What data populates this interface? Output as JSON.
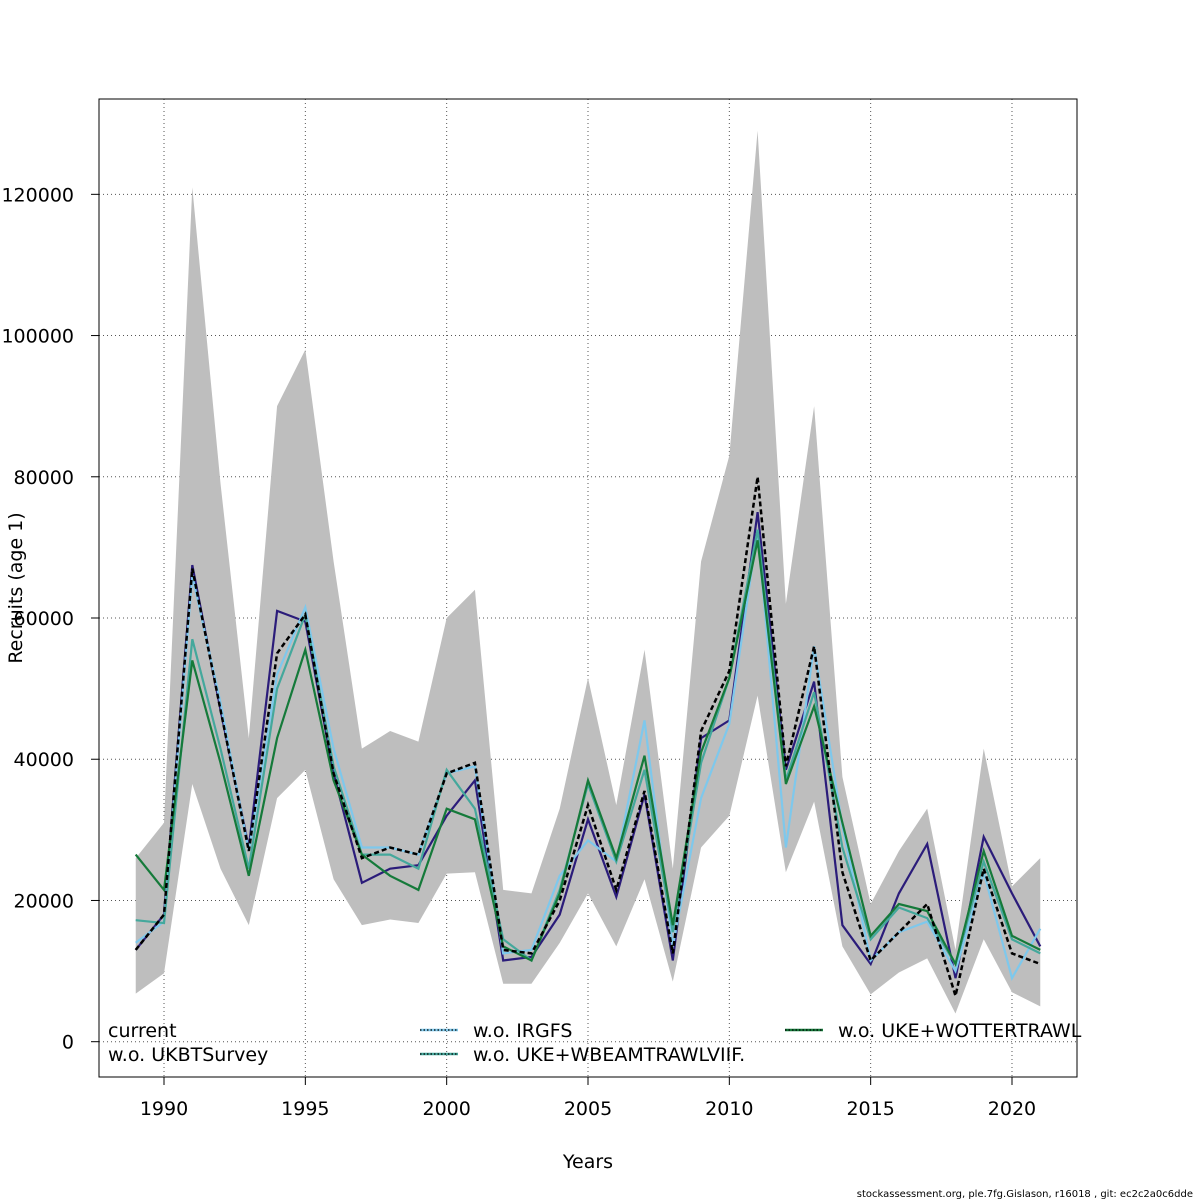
{
  "chart_data": {
    "type": "line",
    "title": "",
    "xlabel": "Years",
    "ylabel": "Recruits (age 1)",
    "xlim": [
      1987.7,
      2022.3
    ],
    "ylim": [
      -5000,
      133500
    ],
    "grid": true,
    "x_ticks": [
      1990,
      1995,
      2000,
      2005,
      2010,
      2015,
      2020
    ],
    "y_ticks": [
      0,
      20000,
      40000,
      60000,
      80000,
      100000,
      120000
    ],
    "x_tick_labels": [
      "1990",
      "1995",
      "2000",
      "2005",
      "2010",
      "2015",
      "2020"
    ],
    "y_tick_labels": [
      "0",
      "20000",
      "40000",
      "60000",
      "80000",
      "100000",
      "120000"
    ],
    "x": [
      1989,
      1990,
      1991,
      1992,
      1993,
      1994,
      1995,
      1996,
      1997,
      1998,
      1999,
      2000,
      2001,
      2002,
      2003,
      2004,
      2005,
      2006,
      2007,
      2008,
      2009,
      2010,
      2011,
      2012,
      2013,
      2014,
      2015,
      2016,
      2017,
      2018,
      2019,
      2020,
      2021
    ],
    "band": {
      "upper": [
        26000,
        31000,
        121000,
        79000,
        43000,
        90000,
        98000,
        68000,
        41500,
        44000,
        42500,
        60000,
        64000,
        21500,
        21000,
        33000,
        51500,
        33500,
        55500,
        24500,
        68000,
        83000,
        129000,
        62000,
        90000,
        37500,
        19500,
        27000,
        33000,
        13000,
        41500,
        22000,
        26000
      ],
      "lower": [
        6800,
        9700,
        36500,
        24500,
        16500,
        34500,
        38500,
        23000,
        16500,
        17300,
        16800,
        23800,
        24000,
        8200,
        8200,
        14000,
        21000,
        13500,
        23000,
        8500,
        27500,
        32000,
        49000,
        24000,
        34000,
        13500,
        6700,
        9800,
        11800,
        4000,
        14500,
        7000,
        5000
      ]
    },
    "legend_position": "bottom",
    "series": [
      {
        "name": "current",
        "color": "#000000",
        "dash": "",
        "values": [
          13000,
          18000,
          67000,
          47000,
          27000,
          55000,
          60500,
          38000,
          26000,
          27500,
          26500,
          38000,
          39500,
          13000,
          12500,
          20000,
          33500,
          21500,
          35500,
          12500,
          44000,
          52500,
          80000,
          39000,
          56000,
          24000,
          11500,
          15500,
          19500,
          6500,
          24500,
          12500,
          11000
        ]
      },
      {
        "name": "w.o. UKBTSurvey",
        "color": "#2b1c7a",
        "dash": "",
        "values": [
          13000,
          18000,
          67500,
          47000,
          27500,
          61000,
          59500,
          38000,
          22500,
          24500,
          25000,
          32000,
          37000,
          11500,
          12000,
          18000,
          31500,
          20500,
          35000,
          11500,
          43000,
          45500,
          75000,
          38500,
          51000,
          16500,
          11000,
          21000,
          28000,
          9000,
          29000,
          21000,
          13500
        ]
      },
      {
        "name": "w.o. IRGFS",
        "color": "#7ec8ec",
        "dash": "",
        "values": [
          14000,
          17000,
          66000,
          48000,
          27000,
          52000,
          61500,
          41500,
          27500,
          27500,
          26500,
          38000,
          39000,
          12500,
          13000,
          23500,
          28500,
          25500,
          45500,
          13500,
          34500,
          45000,
          72500,
          27500,
          56000,
          30500,
          11500,
          15500,
          17000,
          10000,
          24000,
          9000,
          16000
        ]
      },
      {
        "name": "w.o. UKE+WBEAMTRAWLVIIF.",
        "color": "#44a89c",
        "dash": "",
        "values": [
          17200,
          16800,
          57000,
          41500,
          24500,
          50000,
          60500,
          39000,
          26500,
          26500,
          24500,
          38500,
          33000,
          14500,
          11500,
          21500,
          36500,
          25500,
          38500,
          15500,
          39500,
          51500,
          72500,
          37000,
          49500,
          27500,
          14500,
          19000,
          17500,
          11000,
          25500,
          14500,
          12500
        ]
      },
      {
        "name": "w.o. UKE+WOTTERTRAWL",
        "color": "#157a3a",
        "dash": "",
        "values": [
          26500,
          21500,
          54000,
          39500,
          23500,
          43000,
          55500,
          37000,
          26500,
          23500,
          21500,
          33000,
          31500,
          13500,
          11500,
          21000,
          37000,
          26000,
          40500,
          16500,
          41000,
          51500,
          71000,
          36500,
          47500,
          31000,
          15000,
          19500,
          18500,
          11000,
          27000,
          15000,
          13000
        ]
      }
    ],
    "legend": [
      {
        "label": "current",
        "color": "",
        "dash": ""
      },
      {
        "label": "w.o. UKBTSurvey",
        "color": "",
        "dash": ""
      },
      {
        "label": "w.o. IRGFS",
        "color": "#7ec8ec",
        "dash": "dotted"
      },
      {
        "label": "w.o. UKE+WBEAMTRAWLVIIF.",
        "color": "#44a89c",
        "dash": "dotted"
      },
      {
        "label": "w.o. UKE+WOTTERTRAWL",
        "color": "#157a3a",
        "dash": "dotted"
      }
    ]
  },
  "credit_text": "stockassessment.org, ple.7fg.Gislason, r16018 , git: ec2c2a0c6dde"
}
